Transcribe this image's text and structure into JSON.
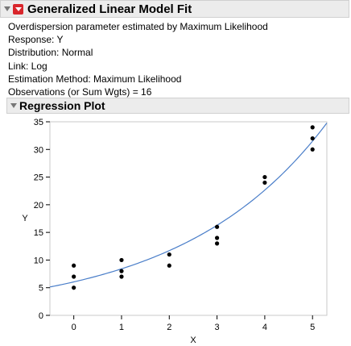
{
  "report": {
    "title": "Generalized Linear Model Fit",
    "info_lines": [
      "Overdispersion parameter estimated by Maximum Likelihood",
      "Response: Y",
      "Distribution: Normal",
      "Link: Log",
      "Estimation Method: Maximum Likelihood",
      "Observations (or Sum Wgts) = 16"
    ]
  },
  "regression_plot": {
    "title": "Regression Plot"
  },
  "chart_data": {
    "type": "scatter",
    "xlabel": "X",
    "ylabel": "Y",
    "xlim": [
      -0.5,
      5.3
    ],
    "ylim": [
      0,
      35
    ],
    "x_ticks": [
      0,
      1,
      2,
      3,
      4,
      5
    ],
    "y_ticks": [
      0,
      5,
      10,
      15,
      20,
      25,
      30,
      35
    ],
    "points": [
      {
        "x": 0,
        "y": 9
      },
      {
        "x": 0,
        "y": 7
      },
      {
        "x": 0,
        "y": 5
      },
      {
        "x": 1,
        "y": 10
      },
      {
        "x": 1,
        "y": 8
      },
      {
        "x": 1,
        "y": 7
      },
      {
        "x": 2,
        "y": 11
      },
      {
        "x": 2,
        "y": 9
      },
      {
        "x": 3,
        "y": 16
      },
      {
        "x": 3,
        "y": 14
      },
      {
        "x": 3,
        "y": 13
      },
      {
        "x": 4,
        "y": 25
      },
      {
        "x": 4,
        "y": 24
      },
      {
        "x": 5,
        "y": 34
      },
      {
        "x": 5,
        "y": 32
      },
      {
        "x": 5,
        "y": 30
      }
    ],
    "fit_curve": {
      "model": "exp",
      "intercept": 1.8,
      "slope": 0.33
    },
    "colors": {
      "points": "#000000",
      "fit": "#4a7ec9",
      "grid": "#c8c8c8"
    }
  }
}
